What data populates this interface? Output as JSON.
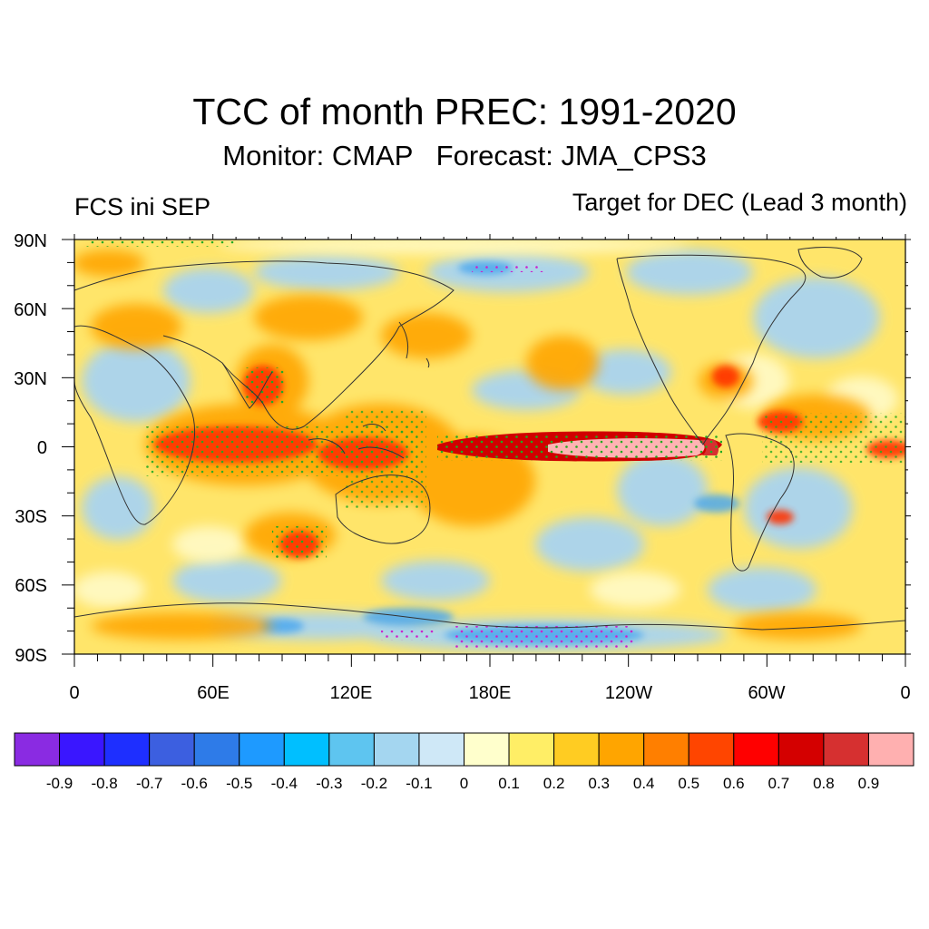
{
  "header": {
    "title": "TCC of month PREC: 1991-2020",
    "subtitle": "Monitor: CMAP   Forecast: JMA_CPS3",
    "left_label": "FCS ini SEP",
    "right_label": "Target for DEC (Lead 3 month)"
  },
  "map": {
    "lat_labels": [
      "90N",
      "60N",
      "30N",
      "0",
      "30S",
      "60S",
      "90S"
    ],
    "lon_labels": [
      "0",
      "60E",
      "120E",
      "180E",
      "120W",
      "60W",
      "0"
    ],
    "projection": "cylindrical-equidistant",
    "lon_range": [
      0,
      360
    ],
    "lat_range": [
      -90,
      90
    ],
    "stipple_colors": {
      "positive_significant": "#22aa22",
      "negative_significant": "#cc22cc"
    }
  },
  "colorbar": {
    "colors": [
      "#8a2be2",
      "#3a16ff",
      "#1e2fff",
      "#3c5fe0",
      "#2e7be8",
      "#1e9aff",
      "#00bfff",
      "#5ec5f0",
      "#a4d6f0",
      "#cfe8f7",
      "#ffffcc",
      "#ffee66",
      "#ffcc22",
      "#ffa500",
      "#ff7f00",
      "#ff4500",
      "#ff0000",
      "#d40000",
      "#d63030",
      "#ffb0b0"
    ],
    "labels": [
      "-0.9",
      "-0.8",
      "-0.7",
      "-0.6",
      "-0.5",
      "-0.4",
      "-0.3",
      "-0.2",
      "-0.1",
      "0",
      "0.1",
      "0.2",
      "0.3",
      "0.4",
      "0.5",
      "0.6",
      "0.7",
      "0.8",
      "0.9"
    ]
  }
}
